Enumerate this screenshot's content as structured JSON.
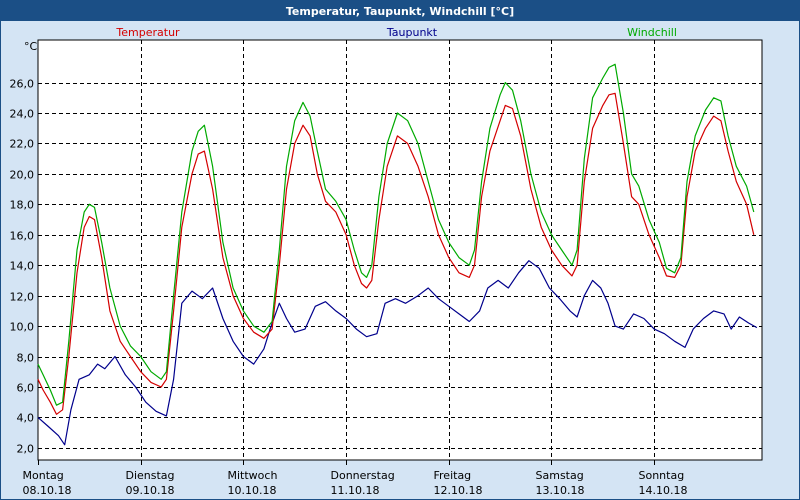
{
  "window": {
    "title": "Temperatur, Taupunkt, Windchill [°C]"
  },
  "chart_data": {
    "type": "line",
    "title": "Temperatur, Taupunkt, Windchill [°C]",
    "ylabel": "°C",
    "xlabel": "",
    "ylim": [
      1.2,
      28.8
    ],
    "yticks": [
      2,
      4,
      6,
      8,
      10,
      12,
      14,
      16,
      18,
      20,
      22,
      24,
      26
    ],
    "xlim": [
      0,
      7.05
    ],
    "xticks": [
      {
        "day": "Montag",
        "date": "08.10.18",
        "x": 0
      },
      {
        "day": "Dienstag",
        "date": "09.10.18",
        "x": 1
      },
      {
        "day": "Mittwoch",
        "date": "10.10.18",
        "x": 2
      },
      {
        "day": "Donnerstag",
        "date": "11.10.18",
        "x": 3
      },
      {
        "day": "Freitag",
        "date": "12.10.18",
        "x": 4
      },
      {
        "day": "Samstag",
        "date": "13.10.18",
        "x": 5
      },
      {
        "day": "Sonntag",
        "date": "14.10.18",
        "x": 6
      }
    ],
    "grid": true,
    "series": [
      {
        "name": "Temperatur",
        "color": "#d40000",
        "points": [
          [
            0.0,
            6.5
          ],
          [
            0.05,
            5.8
          ],
          [
            0.12,
            5.0
          ],
          [
            0.18,
            4.2
          ],
          [
            0.24,
            4.5
          ],
          [
            0.3,
            8.0
          ],
          [
            0.38,
            13.5
          ],
          [
            0.45,
            16.5
          ],
          [
            0.5,
            17.2
          ],
          [
            0.55,
            17.0
          ],
          [
            0.62,
            14.5
          ],
          [
            0.7,
            11.0
          ],
          [
            0.8,
            9.0
          ],
          [
            0.9,
            8.0
          ],
          [
            1.0,
            7.0
          ],
          [
            1.1,
            6.3
          ],
          [
            1.2,
            6.0
          ],
          [
            1.25,
            6.5
          ],
          [
            1.32,
            11.0
          ],
          [
            1.4,
            16.5
          ],
          [
            1.5,
            20.0
          ],
          [
            1.56,
            21.3
          ],
          [
            1.62,
            21.5
          ],
          [
            1.7,
            19.0
          ],
          [
            1.8,
            14.5
          ],
          [
            1.9,
            12.0
          ],
          [
            2.0,
            10.5
          ],
          [
            2.1,
            9.6
          ],
          [
            2.2,
            9.2
          ],
          [
            2.28,
            9.8
          ],
          [
            2.35,
            14.0
          ],
          [
            2.42,
            19.0
          ],
          [
            2.5,
            22.0
          ],
          [
            2.58,
            23.2
          ],
          [
            2.65,
            22.5
          ],
          [
            2.72,
            20.0
          ],
          [
            2.8,
            18.2
          ],
          [
            2.9,
            17.5
          ],
          [
            3.0,
            16.0
          ],
          [
            3.08,
            14.0
          ],
          [
            3.15,
            12.8
          ],
          [
            3.2,
            12.5
          ],
          [
            3.25,
            13.0
          ],
          [
            3.32,
            17.0
          ],
          [
            3.4,
            20.5
          ],
          [
            3.5,
            22.5
          ],
          [
            3.6,
            22.0
          ],
          [
            3.7,
            20.5
          ],
          [
            3.8,
            18.5
          ],
          [
            3.9,
            16.0
          ],
          [
            4.0,
            14.5
          ],
          [
            4.1,
            13.5
          ],
          [
            4.2,
            13.2
          ],
          [
            4.25,
            14.0
          ],
          [
            4.32,
            18.5
          ],
          [
            4.4,
            21.5
          ],
          [
            4.5,
            23.5
          ],
          [
            4.55,
            24.5
          ],
          [
            4.62,
            24.3
          ],
          [
            4.7,
            22.5
          ],
          [
            4.8,
            19.0
          ],
          [
            4.9,
            16.5
          ],
          [
            5.0,
            15.0
          ],
          [
            5.1,
            14.0
          ],
          [
            5.2,
            13.3
          ],
          [
            5.25,
            14.0
          ],
          [
            5.32,
            19.5
          ],
          [
            5.4,
            23.0
          ],
          [
            5.5,
            24.5
          ],
          [
            5.56,
            25.2
          ],
          [
            5.62,
            25.3
          ],
          [
            5.7,
            22.0
          ],
          [
            5.78,
            18.5
          ],
          [
            5.85,
            18.0
          ],
          [
            5.95,
            16.0
          ],
          [
            6.05,
            14.5
          ],
          [
            6.12,
            13.3
          ],
          [
            6.2,
            13.2
          ],
          [
            6.26,
            14.0
          ],
          [
            6.32,
            18.5
          ],
          [
            6.4,
            21.5
          ],
          [
            6.5,
            23.0
          ],
          [
            6.58,
            23.8
          ],
          [
            6.65,
            23.5
          ],
          [
            6.72,
            21.5
          ],
          [
            6.8,
            19.5
          ],
          [
            6.9,
            18.0
          ],
          [
            6.97,
            16.0
          ]
        ]
      },
      {
        "name": "Taupunkt",
        "color": "#00008c",
        "points": [
          [
            0.0,
            4.0
          ],
          [
            0.1,
            3.4
          ],
          [
            0.2,
            2.8
          ],
          [
            0.26,
            2.2
          ],
          [
            0.32,
            4.5
          ],
          [
            0.4,
            6.5
          ],
          [
            0.5,
            6.8
          ],
          [
            0.58,
            7.5
          ],
          [
            0.65,
            7.2
          ],
          [
            0.75,
            8.0
          ],
          [
            0.85,
            6.8
          ],
          [
            0.95,
            6.0
          ],
          [
            1.05,
            5.0
          ],
          [
            1.15,
            4.4
          ],
          [
            1.25,
            4.1
          ],
          [
            1.32,
            6.5
          ],
          [
            1.4,
            11.5
          ],
          [
            1.5,
            12.3
          ],
          [
            1.6,
            11.8
          ],
          [
            1.7,
            12.5
          ],
          [
            1.8,
            10.5
          ],
          [
            1.9,
            9.0
          ],
          [
            2.0,
            8.0
          ],
          [
            2.1,
            7.5
          ],
          [
            2.2,
            8.5
          ],
          [
            2.26,
            9.8
          ],
          [
            2.35,
            11.5
          ],
          [
            2.42,
            10.5
          ],
          [
            2.5,
            9.6
          ],
          [
            2.6,
            9.8
          ],
          [
            2.7,
            11.3
          ],
          [
            2.8,
            11.6
          ],
          [
            2.9,
            11.0
          ],
          [
            3.0,
            10.5
          ],
          [
            3.1,
            9.8
          ],
          [
            3.2,
            9.3
          ],
          [
            3.3,
            9.5
          ],
          [
            3.38,
            11.5
          ],
          [
            3.48,
            11.8
          ],
          [
            3.58,
            11.5
          ],
          [
            3.7,
            12.0
          ],
          [
            3.8,
            12.5
          ],
          [
            3.9,
            11.8
          ],
          [
            4.0,
            11.3
          ],
          [
            4.1,
            10.8
          ],
          [
            4.2,
            10.3
          ],
          [
            4.3,
            11.0
          ],
          [
            4.38,
            12.5
          ],
          [
            4.48,
            13.0
          ],
          [
            4.58,
            12.5
          ],
          [
            4.68,
            13.5
          ],
          [
            4.78,
            14.3
          ],
          [
            4.88,
            13.8
          ],
          [
            4.98,
            12.5
          ],
          [
            5.08,
            11.8
          ],
          [
            5.18,
            11.0
          ],
          [
            5.25,
            10.6
          ],
          [
            5.32,
            12.0
          ],
          [
            5.4,
            13.0
          ],
          [
            5.48,
            12.5
          ],
          [
            5.55,
            11.5
          ],
          [
            5.62,
            10.0
          ],
          [
            5.7,
            9.8
          ],
          [
            5.8,
            10.8
          ],
          [
            5.9,
            10.5
          ],
          [
            6.0,
            9.8
          ],
          [
            6.1,
            9.5
          ],
          [
            6.2,
            9.0
          ],
          [
            6.3,
            8.6
          ],
          [
            6.38,
            9.8
          ],
          [
            6.48,
            10.5
          ],
          [
            6.58,
            11.0
          ],
          [
            6.68,
            10.8
          ],
          [
            6.75,
            9.8
          ],
          [
            6.83,
            10.6
          ],
          [
            6.92,
            10.2
          ],
          [
            7.0,
            9.9
          ]
        ]
      },
      {
        "name": "Windchill",
        "color": "#00aa00",
        "points": [
          [
            0.0,
            7.5
          ],
          [
            0.05,
            6.8
          ],
          [
            0.12,
            5.8
          ],
          [
            0.18,
            4.8
          ],
          [
            0.24,
            5.0
          ],
          [
            0.3,
            9.0
          ],
          [
            0.38,
            15.0
          ],
          [
            0.45,
            17.5
          ],
          [
            0.5,
            18.0
          ],
          [
            0.55,
            17.8
          ],
          [
            0.62,
            15.5
          ],
          [
            0.7,
            12.5
          ],
          [
            0.8,
            10.0
          ],
          [
            0.9,
            8.7
          ],
          [
            1.0,
            8.0
          ],
          [
            1.1,
            7.0
          ],
          [
            1.2,
            6.5
          ],
          [
            1.25,
            7.0
          ],
          [
            1.32,
            12.0
          ],
          [
            1.4,
            17.5
          ],
          [
            1.5,
            21.5
          ],
          [
            1.56,
            22.8
          ],
          [
            1.62,
            23.2
          ],
          [
            1.7,
            20.5
          ],
          [
            1.8,
            15.5
          ],
          [
            1.9,
            12.5
          ],
          [
            2.0,
            11.0
          ],
          [
            2.1,
            10.0
          ],
          [
            2.2,
            9.6
          ],
          [
            2.28,
            10.3
          ],
          [
            2.35,
            15.0
          ],
          [
            2.42,
            20.5
          ],
          [
            2.5,
            23.5
          ],
          [
            2.58,
            24.7
          ],
          [
            2.65,
            23.8
          ],
          [
            2.72,
            21.5
          ],
          [
            2.8,
            19.0
          ],
          [
            2.9,
            18.2
          ],
          [
            3.0,
            17.0
          ],
          [
            3.08,
            15.0
          ],
          [
            3.15,
            13.5
          ],
          [
            3.2,
            13.2
          ],
          [
            3.25,
            14.0
          ],
          [
            3.32,
            18.5
          ],
          [
            3.4,
            22.0
          ],
          [
            3.5,
            24.0
          ],
          [
            3.6,
            23.5
          ],
          [
            3.7,
            22.0
          ],
          [
            3.8,
            19.5
          ],
          [
            3.9,
            17.0
          ],
          [
            4.0,
            15.5
          ],
          [
            4.1,
            14.5
          ],
          [
            4.2,
            14.0
          ],
          [
            4.25,
            15.0
          ],
          [
            4.32,
            19.5
          ],
          [
            4.4,
            23.0
          ],
          [
            4.5,
            25.2
          ],
          [
            4.55,
            26.0
          ],
          [
            4.62,
            25.5
          ],
          [
            4.7,
            23.5
          ],
          [
            4.8,
            20.0
          ],
          [
            4.9,
            17.5
          ],
          [
            5.0,
            16.0
          ],
          [
            5.1,
            15.0
          ],
          [
            5.2,
            14.0
          ],
          [
            5.25,
            15.0
          ],
          [
            5.32,
            21.0
          ],
          [
            5.4,
            25.0
          ],
          [
            5.5,
            26.3
          ],
          [
            5.56,
            27.0
          ],
          [
            5.62,
            27.2
          ],
          [
            5.7,
            24.0
          ],
          [
            5.78,
            20.0
          ],
          [
            5.85,
            19.2
          ],
          [
            5.95,
            17.0
          ],
          [
            6.05,
            15.5
          ],
          [
            6.12,
            13.8
          ],
          [
            6.2,
            13.5
          ],
          [
            6.26,
            14.5
          ],
          [
            6.32,
            19.5
          ],
          [
            6.4,
            22.5
          ],
          [
            6.5,
            24.2
          ],
          [
            6.58,
            25.0
          ],
          [
            6.65,
            24.8
          ],
          [
            6.72,
            22.5
          ],
          [
            6.8,
            20.5
          ],
          [
            6.9,
            19.2
          ],
          [
            6.97,
            17.5
          ]
        ]
      }
    ]
  }
}
